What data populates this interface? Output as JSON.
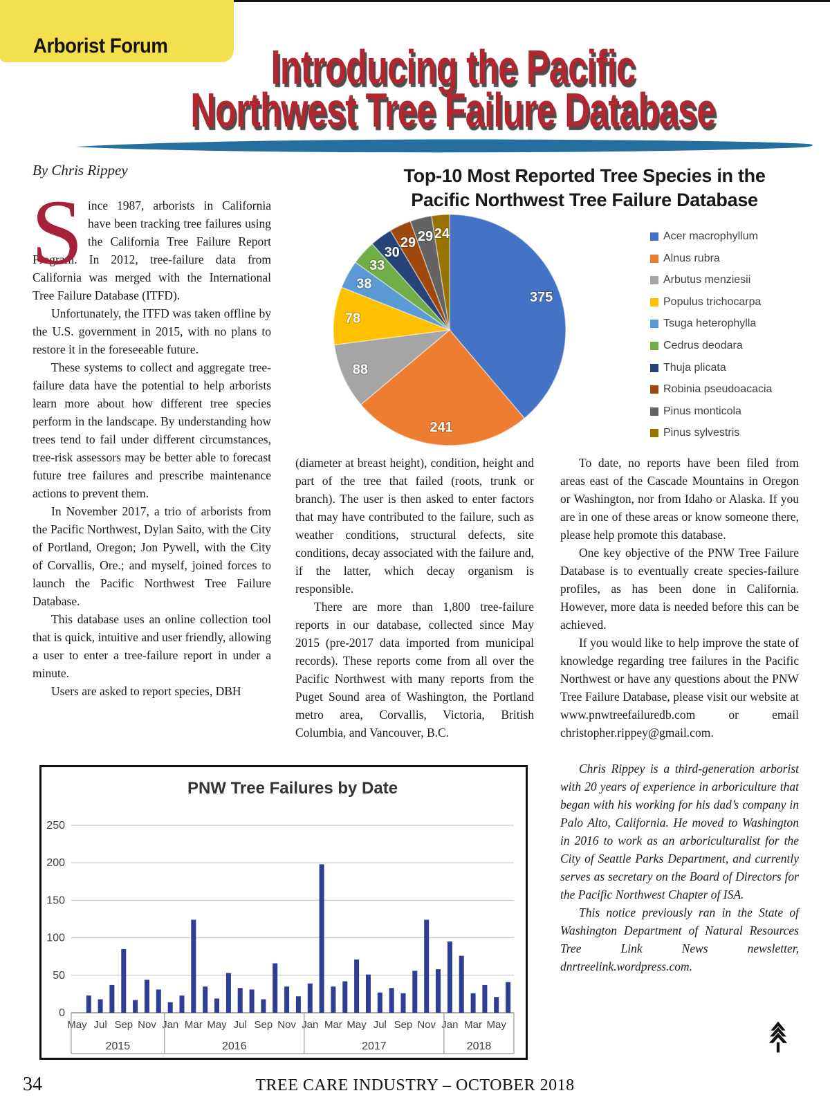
{
  "header": {
    "section_label": "Arborist Forum",
    "title_line1": "Introducing the Pacific",
    "title_line2": "Northwest Tree Failure Database",
    "byline": "By Chris Rippey"
  },
  "colors": {
    "yellow_tab": "#F4DF4F",
    "title_red": "#B22630",
    "brush_blue": "#256E9E",
    "dropcap_red": "#A6213A",
    "bar_blue": "#2F3D94"
  },
  "article": {
    "col1": {
      "dropcap": "S",
      "p1": "ince 1987, arborists in California have been tracking tree failures using the California Tree Failure Report Program. In 2012, tree-failure data from California was merged with the International Tree Failure Database (ITFD).",
      "p2": "Unfortunately, the ITFD was taken offline by the U.S. government in 2015, with no plans to restore it in the foreseeable future.",
      "p3": "These systems to collect and aggregate tree-failure data have the potential to help arborists learn more about how different tree species perform in the landscape. By understanding how trees tend to fail under different circumstances, tree-risk assessors may be better able to forecast future tree failures and prescribe maintenance actions to prevent them.",
      "p4": "In November 2017, a trio of arborists from the Pacific Northwest, Dylan Saito, with the City of Portland, Oregon; Jon Pywell, with the City of Corvallis, Ore.; and myself, joined forces to launch the Pacific Northwest Tree Failure Database.",
      "p5": "This database uses an online collection tool that is quick, intuitive and user friendly, allowing a user to enter a tree-failure report in under a minute.",
      "p6": "Users are asked to report species, DBH"
    },
    "col2": {
      "p1": "(diameter at breast height), condition, height and part of the tree that failed (roots, trunk or branch). The user is then asked to enter factors that may have contributed to the failure, such as weather conditions, structural defects, site conditions, decay associated with the failure and, if the latter, which decay organism is responsible.",
      "p2": "There are more than 1,800 tree-failure reports in our database, collected since May 2015 (pre-2017 data imported from municipal records). These reports come from all over the Pacific Northwest with many reports from the Puget Sound area of Washington, the Portland metro area, Corvallis, Victoria, British Columbia, and Vancouver, B.C."
    },
    "col3": {
      "p1": "To date, no reports have been filed from areas east of the Cascade Mountains in Oregon or Washington, nor from Idaho or Alaska. If you are in one of these areas or know someone there, please help promote this database.",
      "p2": "One key objective of the PNW Tree Failure Database is to eventually create species-failure profiles, as has been done in California. However, more data is needed before this can be achieved.",
      "p3": "If you would like to help improve the state of knowledge regarding tree failures in the Pacific Northwest or have any questions about the PNW Tree Failure Database, please visit our website at www.pnwtreefailuredb.com or email christopher.rippey@gmail.com.",
      "bio1": "Chris Rippey is a third-generation arborist with 20 years of experience in arboriculture that began with his working for his dad’s company in Palo Alto, California. He moved to Washington in 2016 to work as an arboriculturalist for the City of Seattle Parks Department, and currently serves as secretary on the Board of Directors for the Pacific Northwest Chapter of ISA.",
      "bio2": "This notice previously ran in the State of Washington Department of Natural Resources Tree Link News newsletter, dnrtreelink.wordpress.com."
    }
  },
  "chart_data": [
    {
      "type": "pie",
      "title": "Top-10 Most Reported Tree Species in the Pacific Northwest Tree Failure Database",
      "title_lines": [
        "Top-10 Most Reported Tree Species in the",
        "Pacific Northwest Tree Failure Database"
      ],
      "start_angle_deg": -90,
      "direction": "clockwise",
      "data_label_color": "#ffffff",
      "legend_position": "right",
      "series": [
        {
          "label": "Acer macrophyllum",
          "value": 375,
          "color": "#4472C4"
        },
        {
          "label": "Alnus rubra",
          "value": 241,
          "color": "#ED7D31"
        },
        {
          "label": "Arbutus menziesii",
          "value": 88,
          "color": "#A5A5A5"
        },
        {
          "label": "Populus trichocarpa",
          "value": 78,
          "color": "#FFC000"
        },
        {
          "label": "Tsuga heterophylla",
          "value": 38,
          "color": "#5B9BD5"
        },
        {
          "label": "Cedrus deodara",
          "value": 33,
          "color": "#70AD47"
        },
        {
          "label": "Thuja plicata",
          "value": 30,
          "color": "#264478"
        },
        {
          "label": "Robinia pseudoacacia",
          "value": 29,
          "color": "#9E480E"
        },
        {
          "label": "Pinus monticola",
          "value": 29,
          "color": "#636363"
        },
        {
          "label": "Pinus sylvestris",
          "value": 24,
          "color": "#997300"
        }
      ]
    },
    {
      "type": "bar",
      "title": "PNW Tree Failures by Date",
      "ylabel": "",
      "xlabel": "",
      "ylim": [
        0,
        250
      ],
      "yticks": [
        0,
        50,
        100,
        150,
        200,
        250
      ],
      "grid": true,
      "bar_color": "#2F3D94",
      "gridline_color": "#c9c9c9",
      "months": [
        "May",
        "Jun",
        "Jul",
        "Aug",
        "Sep",
        "Oct",
        "Nov",
        "Dec",
        "Jan",
        "Feb",
        "Mar",
        "Apr",
        "May",
        "Jun",
        "Jul",
        "Aug",
        "Sep",
        "Oct",
        "Nov",
        "Dec",
        "Jan",
        "Feb",
        "Mar",
        "Apr",
        "May",
        "Jun",
        "Jul",
        "Aug",
        "Sep",
        "Oct",
        "Nov",
        "Dec",
        "Jan",
        "Feb",
        "Mar",
        "Apr",
        "May",
        "Jun"
      ],
      "year_groups": [
        {
          "label": "2015",
          "months": 8
        },
        {
          "label": "2016",
          "months": 12
        },
        {
          "label": "2017",
          "months": 12
        },
        {
          "label": "2018",
          "months": 6
        }
      ],
      "values": [
        0,
        23,
        18,
        37,
        85,
        17,
        44,
        31,
        14,
        23,
        124,
        35,
        19,
        53,
        33,
        31,
        18,
        66,
        35,
        22,
        39,
        198,
        35,
        42,
        71,
        51,
        27,
        33,
        26,
        56,
        124,
        58,
        95,
        76,
        26,
        37,
        21,
        41
      ],
      "tick_every": 2
    }
  ],
  "footer": {
    "page_number": "34",
    "text": "TREE CARE INDUSTRY – OCTOBER 2018"
  }
}
